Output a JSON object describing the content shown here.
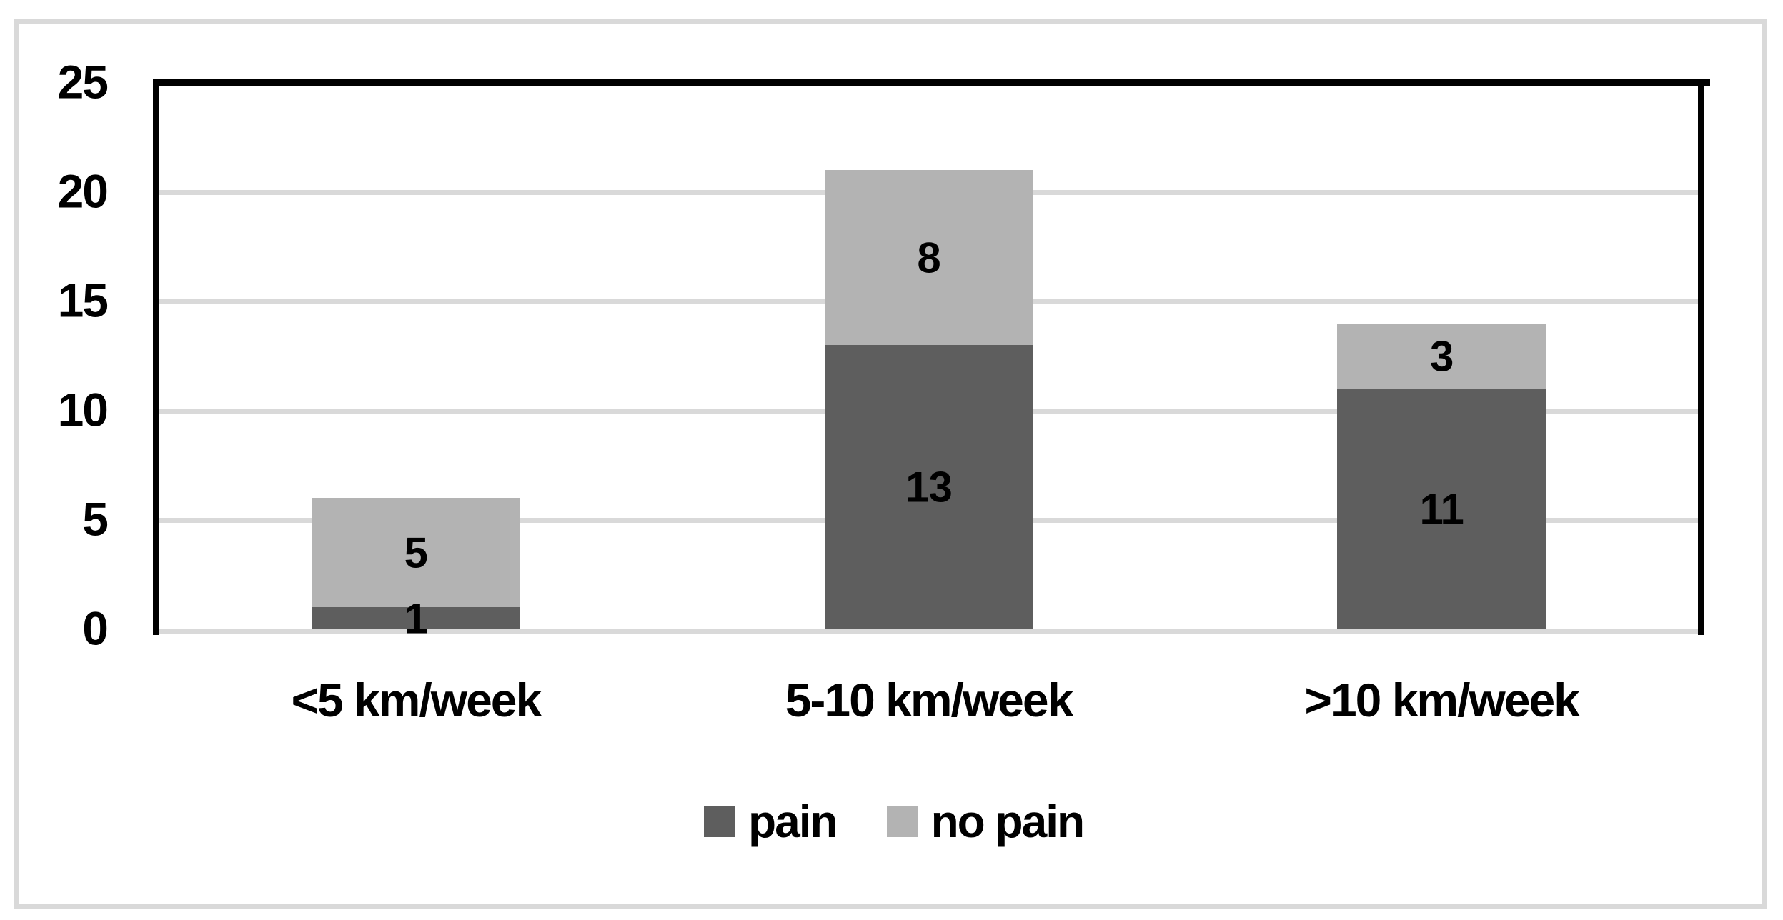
{
  "chart_data": {
    "type": "bar",
    "stacked": true,
    "title": "",
    "xlabel": "",
    "ylabel": "",
    "categories": [
      "<5 km/week",
      "5-10 km/week",
      ">10 km/week"
    ],
    "series": [
      {
        "name": "pain",
        "color": "#5e5e5e",
        "values": [
          1,
          13,
          11
        ]
      },
      {
        "name": "no pain",
        "color": "#b3b3b3",
        "values": [
          5,
          8,
          3
        ]
      }
    ],
    "totals": [
      6,
      21,
      14
    ],
    "ylim": [
      0,
      25
    ],
    "yticks": [
      0,
      5,
      10,
      15,
      20,
      25
    ],
    "grid": true,
    "legend_position": "bottom",
    "colors": {
      "background": "#ffffff",
      "frame": "#d9d9d9",
      "gridline": "#d9d9d9",
      "axis": "#000000",
      "text": "#000000"
    }
  }
}
